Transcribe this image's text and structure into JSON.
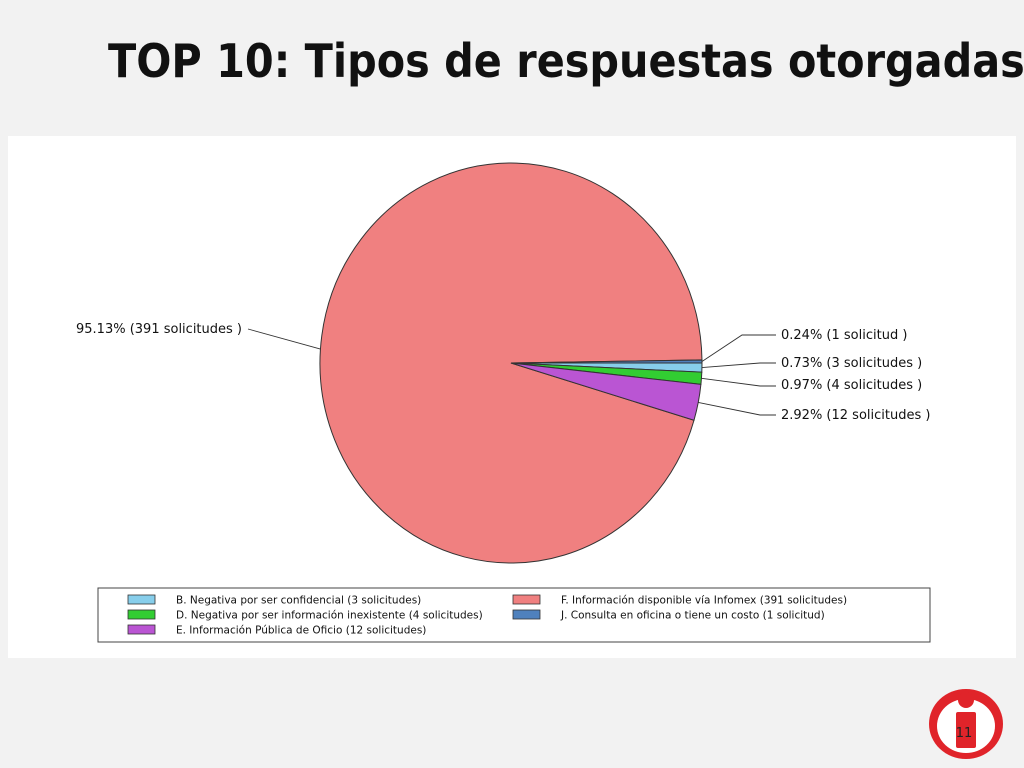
{
  "slide": {
    "title": "TOP 10:  Tipos de respuestas otorgadas",
    "page_number": "11"
  },
  "chart_data": {
    "type": "pie",
    "slices": [
      {
        "key": "F",
        "value": 391,
        "color": "#f08080",
        "label": "95.13%  (391  solicitudes )",
        "legend": "F. Información disponible vía Infomex (391  solicitudes)"
      },
      {
        "key": "J",
        "value": 1,
        "color": "#4f81bd",
        "label": "0.24%  (1  solicitud )",
        "legend": "J. Consulta en oficina o tiene un costo (1  solicitud)"
      },
      {
        "key": "B",
        "value": 3,
        "color": "#87ceeb",
        "label": "0.73%  (3  solicitudes )",
        "legend": "B. Negativa por ser confidencial (3  solicitudes)"
      },
      {
        "key": "D",
        "value": 4,
        "color": "#32cd32",
        "label": "0.97%  (4  solicitudes )",
        "legend": "D. Negativa por ser información inexistente (4  solicitudes)"
      },
      {
        "key": "E",
        "value": 12,
        "color": "#ba55d3",
        "label": "2.92%  (12  solicitudes )",
        "legend": "E. Información Pública de Oficio (12  solicitudes)"
      }
    ],
    "legend_order": [
      "B",
      "F",
      "D",
      "J",
      "E"
    ]
  },
  "logo": {
    "letter": "i",
    "color": "#e0242a"
  }
}
